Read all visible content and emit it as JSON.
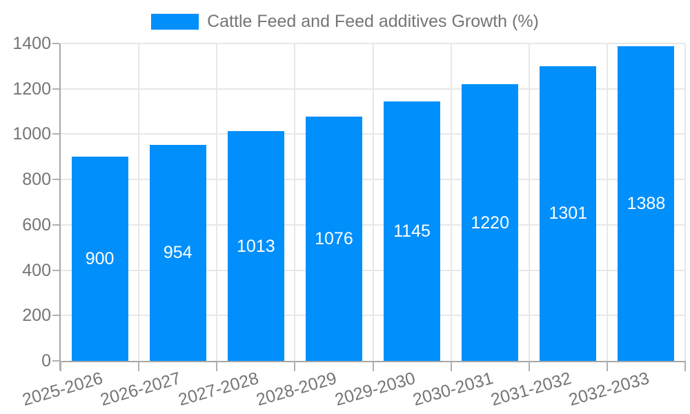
{
  "legend": {
    "label": "Cattle Feed and Feed additives Growth (%)"
  },
  "chart_data": {
    "type": "bar",
    "title": "",
    "xlabel": "",
    "ylabel": "",
    "categories": [
      "2025-2026",
      "2026-2027",
      "2027-2028",
      "2028-2029",
      "2029-2030",
      "2030-2031",
      "2031-2032",
      "2032-2033"
    ],
    "series": [
      {
        "name": "Cattle Feed and Feed additives Growth (%)",
        "values": [
          900,
          954,
          1013,
          1076,
          1145,
          1220,
          1301,
          1388
        ]
      }
    ],
    "value_labels_shown": true,
    "ylim": [
      0,
      1400
    ],
    "yticks": [
      0,
      200,
      400,
      600,
      800,
      1000,
      1200,
      1400
    ],
    "grid": true,
    "legend_position": "top",
    "x_tick_label_rotation_deg": -16
  },
  "colors": {
    "bar": "#008FFB",
    "grid": "#e7e7e7",
    "axis": "#a6a6a6",
    "tick": "#b0b0b0",
    "tick_label": "#757575",
    "legend_text": "#757575",
    "value_label": "#ffffff",
    "background": "#ffffff"
  }
}
